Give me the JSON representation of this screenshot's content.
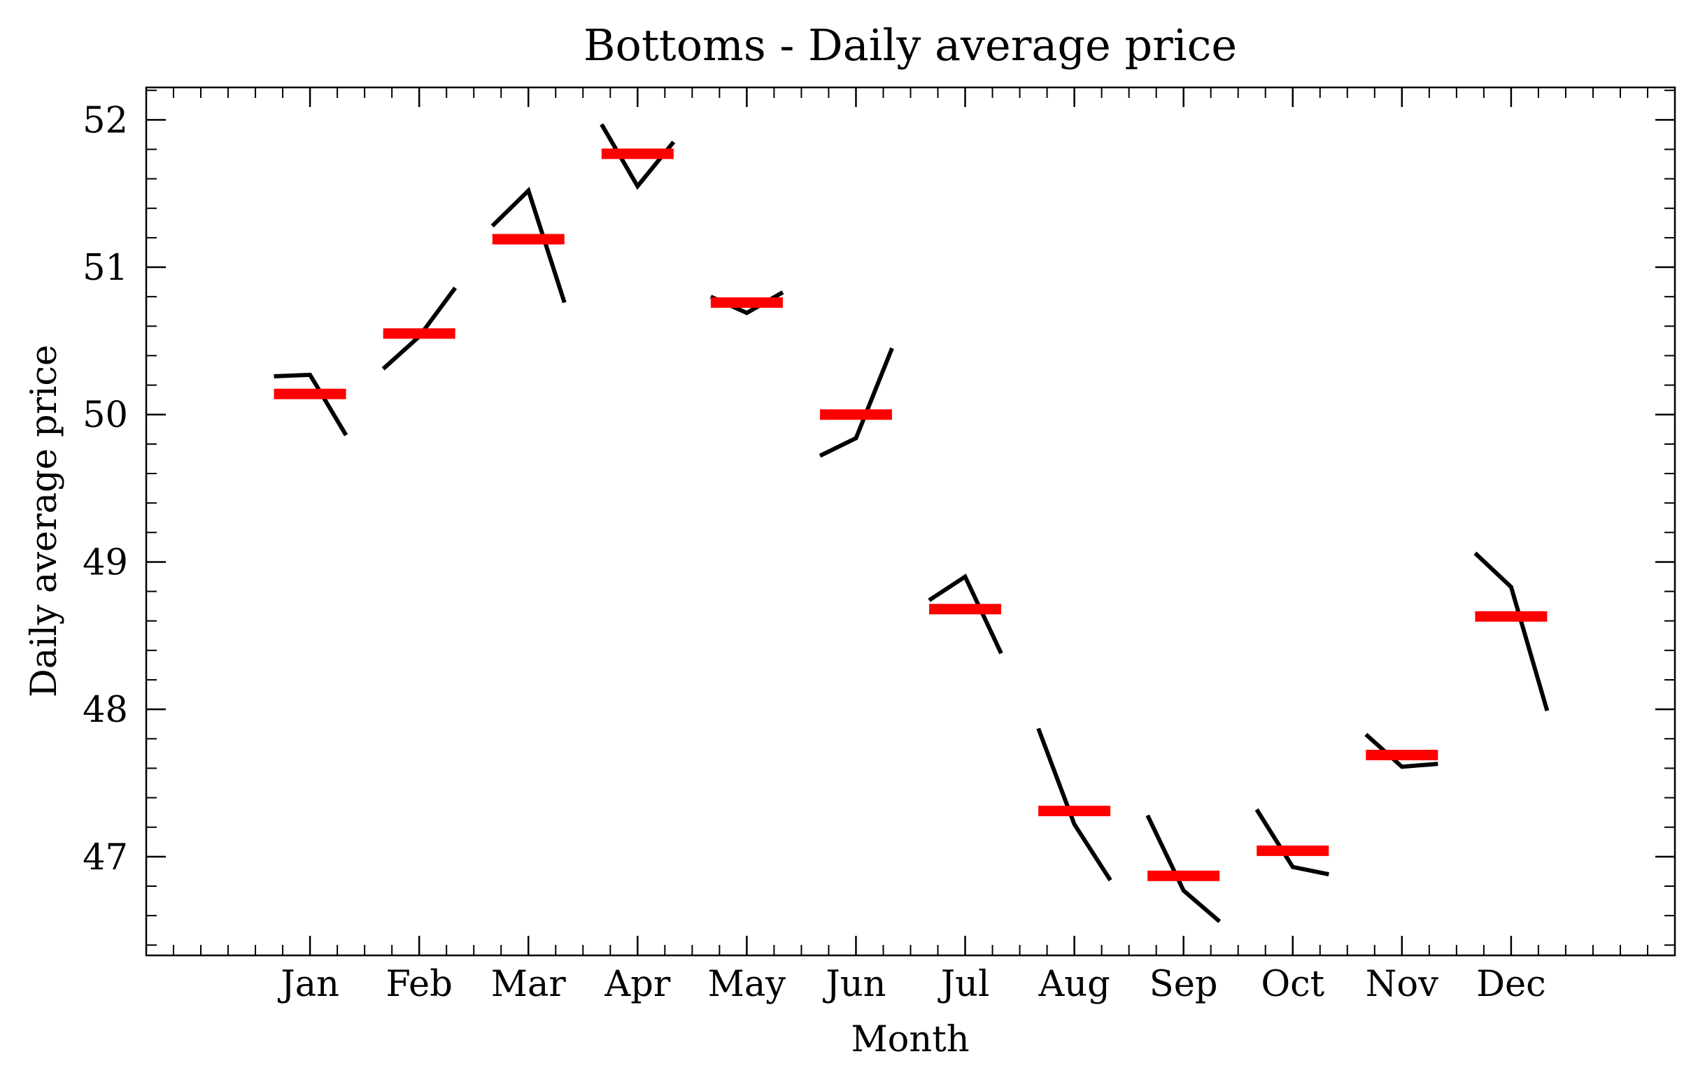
{
  "chart_data": {
    "type": "line",
    "title": "Bottoms - Daily average price",
    "xlabel": "Month",
    "ylabel": "Daily average price",
    "categories": [
      "Jan",
      "Feb",
      "Mar",
      "Apr",
      "May",
      "Jun",
      "Jul",
      "Aug",
      "Sep",
      "Oct",
      "Nov",
      "Dec"
    ],
    "yticks": [
      47,
      48,
      49,
      50,
      51,
      52
    ],
    "ylim": [
      46.33,
      52.22
    ],
    "xlim": [
      -1.5,
      12.5
    ],
    "grid": false,
    "subseries_x_offsets": [
      -0.33,
      0.0,
      0.33
    ],
    "subseries_values": [
      [
        50.26,
        50.27,
        49.86
      ],
      [
        50.31,
        50.53,
        50.86
      ],
      [
        51.28,
        51.52,
        50.76
      ],
      [
        51.97,
        51.55,
        51.85
      ],
      [
        50.8,
        50.69,
        50.83
      ],
      [
        49.72,
        49.84,
        50.45
      ],
      [
        48.74,
        48.9,
        48.38
      ],
      [
        47.87,
        47.22,
        46.84
      ],
      [
        47.28,
        46.77,
        46.56
      ],
      [
        47.32,
        46.93,
        46.88
      ],
      [
        47.83,
        47.61,
        47.63
      ],
      [
        49.06,
        48.83,
        47.99
      ]
    ],
    "means": [
      50.14,
      50.55,
      51.19,
      51.77,
      50.76,
      50.0,
      48.68,
      47.31,
      46.87,
      47.04,
      47.69,
      48.63
    ],
    "colors": {
      "subseries": "#000000",
      "mean": "#ff0000"
    }
  }
}
